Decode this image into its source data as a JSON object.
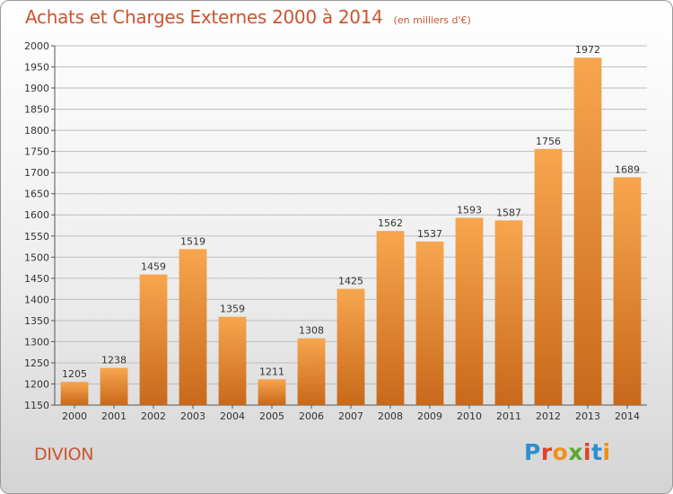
{
  "header": {
    "title": "Achats et Charges Externes 2000 à 2014",
    "unit": "(en milliers d'€)"
  },
  "footer": {
    "commune": "DIVION",
    "logo": "Proxiti",
    "logo_letters": [
      "P",
      "r",
      "o",
      "x",
      "i",
      "t",
      "i"
    ]
  },
  "colors": {
    "bar_light": "#f7a64e",
    "bar_dark": "#c8691b",
    "title": "#c9552f",
    "grid": "#bdbdbd"
  },
  "chart_data": {
    "type": "bar",
    "categories": [
      "2000",
      "2001",
      "2002",
      "2003",
      "2004",
      "2005",
      "2006",
      "2007",
      "2008",
      "2009",
      "2010",
      "2011",
      "2012",
      "2013",
      "2014"
    ],
    "values": [
      1205,
      1238,
      1459,
      1519,
      1359,
      1211,
      1308,
      1425,
      1562,
      1537,
      1593,
      1587,
      1756,
      1972,
      1689
    ],
    "data_labels": [
      "1205",
      "1238",
      "1459",
      "1519",
      "1359",
      "1211",
      "1308",
      "1425",
      "1562",
      "1537",
      "1593",
      "1587",
      "1756",
      "1972",
      "1689"
    ],
    "ylim": [
      1150,
      2000
    ],
    "yticks": [
      1150,
      1200,
      1250,
      1300,
      1350,
      1400,
      1450,
      1500,
      1550,
      1600,
      1650,
      1700,
      1750,
      1800,
      1850,
      1900,
      1950,
      2000
    ],
    "ytick_labels": [
      "1150",
      "1200",
      "1250",
      "1300",
      "1350",
      "1400",
      "1450",
      "1500",
      "1550",
      "1600",
      "1650",
      "1700",
      "1750",
      "1800",
      "1850",
      "1900",
      "1950",
      "2000"
    ],
    "grid": true,
    "legend": "none"
  }
}
